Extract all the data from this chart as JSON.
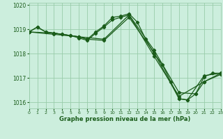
{
  "line1": {
    "x": [
      0,
      1,
      2,
      3,
      4,
      5,
      6,
      7,
      8,
      9,
      10,
      11,
      12,
      13,
      14,
      15,
      16,
      17,
      18,
      19,
      20,
      21,
      22,
      23
    ],
    "y": [
      1018.9,
      1019.1,
      1018.9,
      1018.85,
      1018.8,
      1018.75,
      1018.7,
      1018.6,
      1018.9,
      1019.15,
      1019.5,
      1019.55,
      1019.65,
      1019.3,
      1018.6,
      1018.0,
      1017.55,
      1016.85,
      1016.15,
      1016.1,
      1016.35,
      1017.05,
      1017.2,
      1017.2
    ]
  },
  "line2": {
    "x": [
      0,
      1,
      2,
      3,
      4,
      5,
      6,
      7,
      8,
      9,
      10,
      11,
      12,
      15,
      18,
      21,
      23
    ],
    "y": [
      1018.9,
      1019.1,
      1018.9,
      1018.85,
      1018.8,
      1018.75,
      1018.65,
      1018.55,
      1018.85,
      1019.1,
      1019.4,
      1019.5,
      1019.6,
      1017.9,
      1016.25,
      1016.85,
      1017.15
    ]
  },
  "line3": {
    "x": [
      0,
      3,
      6,
      7,
      9,
      12,
      15,
      18,
      19,
      21,
      23
    ],
    "y": [
      1018.9,
      1018.8,
      1018.7,
      1018.6,
      1018.55,
      1019.5,
      1018.05,
      1016.15,
      1016.1,
      1017.1,
      1017.2
    ]
  },
  "line4": {
    "x": [
      0,
      3,
      6,
      9,
      12,
      15,
      18,
      20,
      21,
      23
    ],
    "y": [
      1018.9,
      1018.85,
      1018.7,
      1018.6,
      1019.6,
      1018.15,
      1016.4,
      1016.35,
      1016.85,
      1017.2
    ]
  },
  "line_color": "#1a5c1a",
  "bg_color": "#cceedd",
  "grid_color": "#99ccaa",
  "xlabel": "Graphe pression niveau de la mer (hPa)",
  "xlim": [
    0,
    23
  ],
  "ylim": [
    1015.75,
    1020.1
  ],
  "yticks": [
    1016,
    1017,
    1018,
    1019,
    1020
  ],
  "xticks": [
    0,
    1,
    2,
    3,
    4,
    5,
    6,
    7,
    8,
    9,
    10,
    11,
    12,
    13,
    14,
    15,
    16,
    17,
    18,
    19,
    20,
    21,
    22,
    23
  ],
  "marker": "D",
  "markersize": 2.2,
  "linewidth": 0.9
}
